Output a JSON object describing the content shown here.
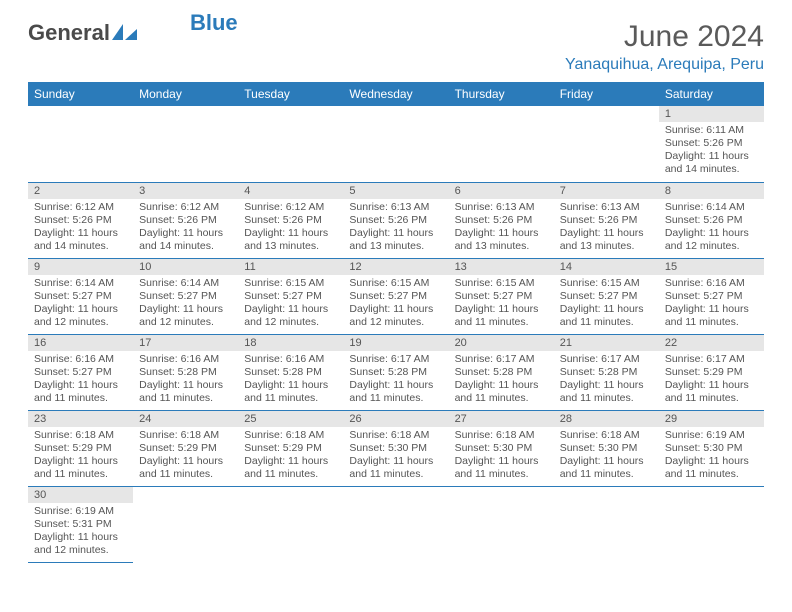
{
  "brand": {
    "name_part1": "General",
    "name_part2": "Blue"
  },
  "title": "June 2024",
  "location": "Yanaquihua, Arequipa, Peru",
  "colors": {
    "accent": "#2b7bba",
    "header_bg": "#2b7bba",
    "daynum_bg": "#e6e6e6",
    "text": "#555555"
  },
  "day_names": [
    "Sunday",
    "Monday",
    "Tuesday",
    "Wednesday",
    "Thursday",
    "Friday",
    "Saturday"
  ],
  "calendar": {
    "type": "table",
    "first_weekday_index": 6,
    "days": [
      {
        "n": 1,
        "sunrise": "6:11 AM",
        "sunset": "5:26 PM",
        "daylight": "11 hours and 14 minutes."
      },
      {
        "n": 2,
        "sunrise": "6:12 AM",
        "sunset": "5:26 PM",
        "daylight": "11 hours and 14 minutes."
      },
      {
        "n": 3,
        "sunrise": "6:12 AM",
        "sunset": "5:26 PM",
        "daylight": "11 hours and 14 minutes."
      },
      {
        "n": 4,
        "sunrise": "6:12 AM",
        "sunset": "5:26 PM",
        "daylight": "11 hours and 13 minutes."
      },
      {
        "n": 5,
        "sunrise": "6:13 AM",
        "sunset": "5:26 PM",
        "daylight": "11 hours and 13 minutes."
      },
      {
        "n": 6,
        "sunrise": "6:13 AM",
        "sunset": "5:26 PM",
        "daylight": "11 hours and 13 minutes."
      },
      {
        "n": 7,
        "sunrise": "6:13 AM",
        "sunset": "5:26 PM",
        "daylight": "11 hours and 13 minutes."
      },
      {
        "n": 8,
        "sunrise": "6:14 AM",
        "sunset": "5:26 PM",
        "daylight": "11 hours and 12 minutes."
      },
      {
        "n": 9,
        "sunrise": "6:14 AM",
        "sunset": "5:27 PM",
        "daylight": "11 hours and 12 minutes."
      },
      {
        "n": 10,
        "sunrise": "6:14 AM",
        "sunset": "5:27 PM",
        "daylight": "11 hours and 12 minutes."
      },
      {
        "n": 11,
        "sunrise": "6:15 AM",
        "sunset": "5:27 PM",
        "daylight": "11 hours and 12 minutes."
      },
      {
        "n": 12,
        "sunrise": "6:15 AM",
        "sunset": "5:27 PM",
        "daylight": "11 hours and 12 minutes."
      },
      {
        "n": 13,
        "sunrise": "6:15 AM",
        "sunset": "5:27 PM",
        "daylight": "11 hours and 11 minutes."
      },
      {
        "n": 14,
        "sunrise": "6:15 AM",
        "sunset": "5:27 PM",
        "daylight": "11 hours and 11 minutes."
      },
      {
        "n": 15,
        "sunrise": "6:16 AM",
        "sunset": "5:27 PM",
        "daylight": "11 hours and 11 minutes."
      },
      {
        "n": 16,
        "sunrise": "6:16 AM",
        "sunset": "5:27 PM",
        "daylight": "11 hours and 11 minutes."
      },
      {
        "n": 17,
        "sunrise": "6:16 AM",
        "sunset": "5:28 PM",
        "daylight": "11 hours and 11 minutes."
      },
      {
        "n": 18,
        "sunrise": "6:16 AM",
        "sunset": "5:28 PM",
        "daylight": "11 hours and 11 minutes."
      },
      {
        "n": 19,
        "sunrise": "6:17 AM",
        "sunset": "5:28 PM",
        "daylight": "11 hours and 11 minutes."
      },
      {
        "n": 20,
        "sunrise": "6:17 AM",
        "sunset": "5:28 PM",
        "daylight": "11 hours and 11 minutes."
      },
      {
        "n": 21,
        "sunrise": "6:17 AM",
        "sunset": "5:28 PM",
        "daylight": "11 hours and 11 minutes."
      },
      {
        "n": 22,
        "sunrise": "6:17 AM",
        "sunset": "5:29 PM",
        "daylight": "11 hours and 11 minutes."
      },
      {
        "n": 23,
        "sunrise": "6:18 AM",
        "sunset": "5:29 PM",
        "daylight": "11 hours and 11 minutes."
      },
      {
        "n": 24,
        "sunrise": "6:18 AM",
        "sunset": "5:29 PM",
        "daylight": "11 hours and 11 minutes."
      },
      {
        "n": 25,
        "sunrise": "6:18 AM",
        "sunset": "5:29 PM",
        "daylight": "11 hours and 11 minutes."
      },
      {
        "n": 26,
        "sunrise": "6:18 AM",
        "sunset": "5:30 PM",
        "daylight": "11 hours and 11 minutes."
      },
      {
        "n": 27,
        "sunrise": "6:18 AM",
        "sunset": "5:30 PM",
        "daylight": "11 hours and 11 minutes."
      },
      {
        "n": 28,
        "sunrise": "6:18 AM",
        "sunset": "5:30 PM",
        "daylight": "11 hours and 11 minutes."
      },
      {
        "n": 29,
        "sunrise": "6:19 AM",
        "sunset": "5:30 PM",
        "daylight": "11 hours and 11 minutes."
      },
      {
        "n": 30,
        "sunrise": "6:19 AM",
        "sunset": "5:31 PM",
        "daylight": "11 hours and 12 minutes."
      }
    ],
    "labels": {
      "sunrise": "Sunrise:",
      "sunset": "Sunset:",
      "daylight": "Daylight:"
    }
  }
}
